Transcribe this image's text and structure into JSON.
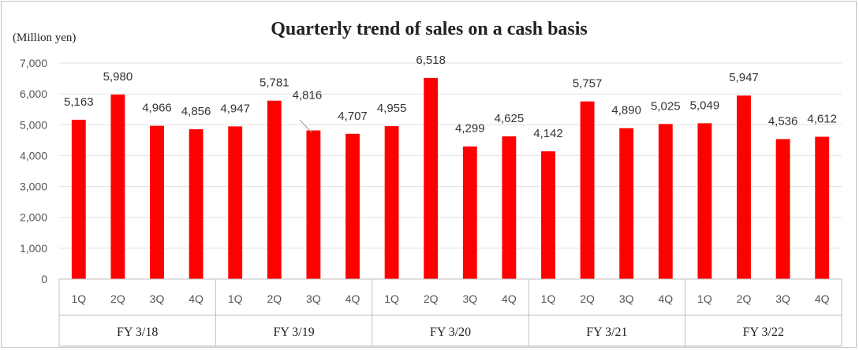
{
  "chart_data": {
    "type": "bar",
    "title": "Quarterly trend of sales on a cash basis",
    "unit_label": "(Million yen)",
    "ylim": [
      0,
      7000
    ],
    "yticks": [
      "0",
      "1,000",
      "2,000",
      "3,000",
      "4,000",
      "5,000",
      "6,000",
      "7,000"
    ],
    "grid": true,
    "bar_color": "#ff0000",
    "groups": [
      {
        "label": "FY 3/18",
        "categories": [
          "1Q",
          "2Q",
          "3Q",
          "4Q"
        ],
        "values": [
          5163,
          5980,
          4966,
          4856
        ],
        "value_labels": [
          "5,163",
          "5,980",
          "4,966",
          "4,856"
        ]
      },
      {
        "label": "FY 3/19",
        "categories": [
          "1Q",
          "2Q",
          "3Q",
          "4Q"
        ],
        "values": [
          4947,
          5781,
          4816,
          4707
        ],
        "value_labels": [
          "4,947",
          "5,781",
          "4,816",
          "4,707"
        ]
      },
      {
        "label": "FY 3/20",
        "categories": [
          "1Q",
          "2Q",
          "3Q",
          "4Q"
        ],
        "values": [
          4955,
          6518,
          4299,
          4625
        ],
        "value_labels": [
          "4,955",
          "6,518",
          "4,299",
          "4,625"
        ]
      },
      {
        "label": "FY 3/21",
        "categories": [
          "1Q",
          "2Q",
          "3Q",
          "4Q"
        ],
        "values": [
          4142,
          5757,
          4890,
          5025
        ],
        "value_labels": [
          "4,142",
          "5,757",
          "4,890",
          "5,025"
        ]
      },
      {
        "label": "FY 3/22",
        "categories": [
          "1Q",
          "2Q",
          "3Q",
          "4Q"
        ],
        "values": [
          5049,
          5947,
          4536,
          4612
        ],
        "value_labels": [
          "5,049",
          "5,947",
          "4,536",
          "4,612"
        ]
      }
    ]
  }
}
